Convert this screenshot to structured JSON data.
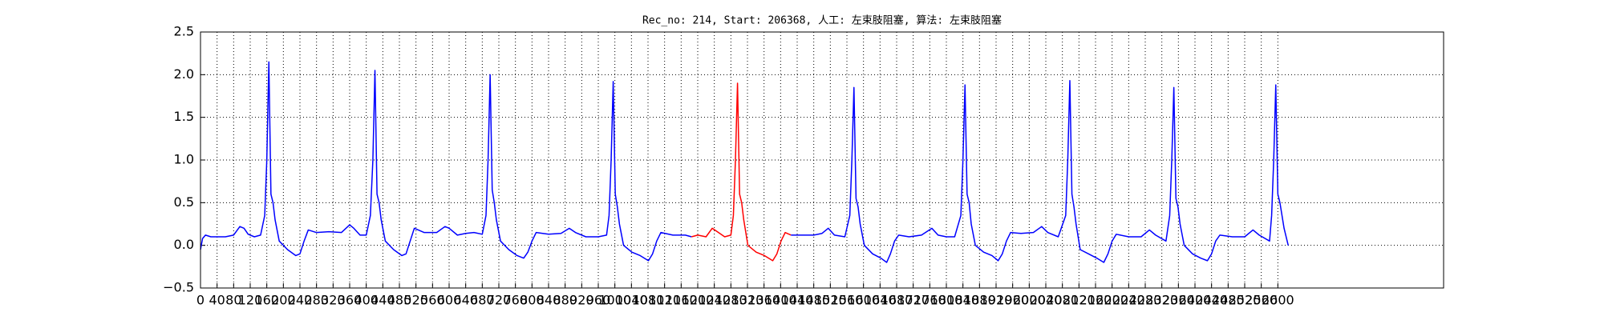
{
  "chart_data": {
    "type": "line",
    "title": "Rec_no: 214, Start: 206368, 人工: 左束肢阻塞, 算法: 左束肢阻塞",
    "xlim": [
      0,
      3000
    ],
    "xticks": [
      0,
      40,
      80,
      120,
      160,
      200,
      240,
      280,
      320,
      360,
      400,
      440,
      480,
      520,
      560,
      600,
      640,
      680,
      720,
      760,
      800,
      840,
      880,
      920,
      960,
      1000,
      1040,
      1080,
      1120,
      1160,
      1200,
      1240,
      1280,
      1320,
      1360,
      1400,
      1440,
      1480,
      1520,
      1560,
      1600,
      1640,
      1680,
      1720,
      1760,
      1800,
      1840,
      1880,
      1920,
      1960,
      2000,
      2040,
      2080,
      2120,
      2160,
      2200,
      2240,
      2280,
      2320,
      2360,
      2400,
      2440,
      2480,
      2520,
      2560,
      2600
    ],
    "ylim": [
      -0.5,
      2.5
    ],
    "yticks": [
      {
        "value": -0.5,
        "label": "−0.5"
      },
      {
        "value": 0,
        "label": "0.0"
      },
      0.5,
      {
        "value": 1,
        "label": "1.0"
      },
      1.5,
      {
        "value": 2,
        "label": "2.0"
      },
      2.5
    ],
    "grid": true,
    "series": [
      {
        "color": "#0000ff",
        "x": [
          0,
          5,
          12,
          25,
          40,
          60,
          80,
          95,
          105,
          115,
          130,
          145,
          155,
          160,
          165,
          170,
          175,
          180,
          190,
          210,
          230,
          240,
          250,
          260,
          280,
          310,
          340,
          360,
          370,
          385,
          400,
          410,
          416,
          421,
          426,
          431,
          436,
          446,
          466,
          486,
          496,
          506,
          516,
          540,
          570,
          590,
          600,
          620,
          640,
          660,
          680,
          689,
          694,
          699,
          704,
          709,
          714,
          724,
          744,
          764,
          780,
          790,
          800,
          810,
          840,
          870,
          890,
          905,
          930,
          960,
          980,
          986,
          991,
          996,
          1001,
          1006,
          1011,
          1021,
          1041,
          1061,
          1081,
          1091,
          1101,
          1111,
          1140,
          1170,
          1185
        ],
        "values": [
          -0.05,
          0.08,
          0.12,
          0.1,
          0.1,
          0.1,
          0.12,
          0.22,
          0.2,
          0.13,
          0.1,
          0.12,
          0.35,
          1.0,
          2.15,
          0.6,
          0.5,
          0.3,
          0.05,
          -0.05,
          -0.12,
          -0.1,
          0.05,
          0.18,
          0.15,
          0.16,
          0.15,
          0.24,
          0.2,
          0.12,
          0.12,
          0.35,
          1.0,
          2.05,
          0.6,
          0.5,
          0.3,
          0.05,
          -0.05,
          -0.12,
          -0.1,
          0.05,
          0.2,
          0.15,
          0.15,
          0.22,
          0.2,
          0.12,
          0.14,
          0.15,
          0.13,
          0.35,
          1.0,
          2.0,
          0.65,
          0.5,
          0.3,
          0.05,
          -0.05,
          -0.12,
          -0.15,
          -0.08,
          0.05,
          0.15,
          0.13,
          0.14,
          0.2,
          0.15,
          0.1,
          0.1,
          0.12,
          0.35,
          1.0,
          1.92,
          0.6,
          0.45,
          0.25,
          0.0,
          -0.08,
          -0.12,
          -0.18,
          -0.1,
          0.05,
          0.15,
          0.12,
          0.12,
          0.1
        ]
      },
      {
        "color": "#ff0000",
        "x": [
          1185,
          1200,
          1220,
          1235,
          1250,
          1265,
          1280,
          1286,
          1291,
          1296,
          1301,
          1306,
          1311,
          1321,
          1341,
          1361,
          1381,
          1391,
          1401,
          1411,
          1425
        ],
        "values": [
          0.1,
          0.12,
          0.1,
          0.2,
          0.15,
          0.1,
          0.12,
          0.35,
          1.0,
          1.9,
          0.6,
          0.5,
          0.3,
          0.0,
          -0.08,
          -0.12,
          -0.18,
          -0.1,
          0.05,
          0.15,
          0.12
        ]
      },
      {
        "color": "#0000ff",
        "x": [
          1425,
          1450,
          1480,
          1500,
          1515,
          1530,
          1555,
          1567,
          1572,
          1577,
          1582,
          1587,
          1592,
          1602,
          1622,
          1642,
          1656,
          1665,
          1675,
          1685,
          1710,
          1740,
          1765,
          1780,
          1800,
          1820,
          1835,
          1840,
          1845,
          1850,
          1855,
          1860,
          1870,
          1890,
          1910,
          1925,
          1935,
          1945,
          1955,
          1980,
          2010,
          2030,
          2045,
          2070,
          2088,
          2093,
          2098,
          2103,
          2108,
          2113,
          2123,
          2143,
          2163,
          2180,
          2190,
          2200,
          2210,
          2240,
          2270,
          2290,
          2305,
          2330,
          2339,
          2344,
          2349,
          2354,
          2359,
          2364,
          2374,
          2394,
          2414,
          2430,
          2440,
          2450,
          2460,
          2490,
          2520,
          2540,
          2555,
          2580,
          2585,
          2590,
          2595,
          2600,
          2605,
          2615,
          2625
        ],
        "values": [
          0.12,
          0.12,
          0.12,
          0.14,
          0.2,
          0.12,
          0.1,
          0.35,
          1.0,
          1.85,
          0.55,
          0.45,
          0.25,
          0.0,
          -0.1,
          -0.15,
          -0.2,
          -0.1,
          0.05,
          0.12,
          0.1,
          0.12,
          0.2,
          0.12,
          0.1,
          0.1,
          0.35,
          1.0,
          1.88,
          0.6,
          0.5,
          0.25,
          0.0,
          -0.08,
          -0.12,
          -0.18,
          -0.1,
          0.05,
          0.15,
          0.14,
          0.15,
          0.22,
          0.15,
          0.1,
          0.35,
          1.0,
          1.93,
          0.6,
          0.45,
          0.25,
          -0.05,
          -0.1,
          -0.15,
          -0.2,
          -0.1,
          0.05,
          0.13,
          0.1,
          0.1,
          0.18,
          0.12,
          0.05,
          0.35,
          1.0,
          1.85,
          0.55,
          0.45,
          0.25,
          0.0,
          -0.1,
          -0.15,
          -0.18,
          -0.1,
          0.05,
          0.12,
          0.1,
          0.1,
          0.18,
          0.12,
          0.05,
          0.35,
          1.0,
          1.88,
          0.6,
          0.5,
          0.2,
          0.0
        ]
      }
    ]
  }
}
